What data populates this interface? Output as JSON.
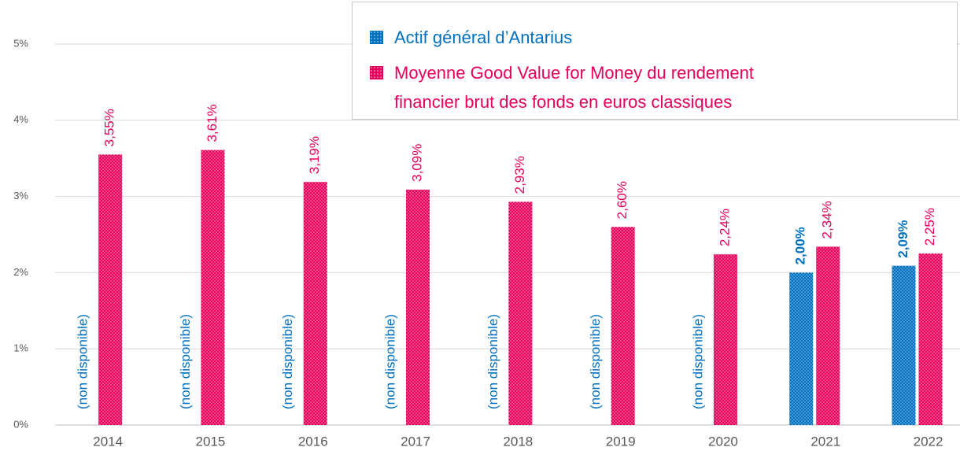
{
  "chart_data": {
    "type": "bar",
    "categories": [
      "2014",
      "2015",
      "2016",
      "2017",
      "2018",
      "2019",
      "2020",
      "2021",
      "2022"
    ],
    "series": [
      {
        "name": "Actif général d’Antarius",
        "color": "#0070c0",
        "values": [
          null,
          null,
          null,
          null,
          null,
          null,
          null,
          2.0,
          2.09
        ],
        "value_labels": [
          "(non disponible)",
          "(non disponible)",
          "(non disponible)",
          "(non disponible)",
          "(non disponible)",
          "(non disponible)",
          "(non disponible)",
          "2,00%",
          "2,09%"
        ]
      },
      {
        "name": "Moyenne Good Value for Money du rendement financier brut des fonds en euros classiques",
        "color": "#e6005c",
        "values": [
          3.55,
          3.61,
          3.19,
          3.09,
          2.93,
          2.6,
          2.24,
          2.34,
          2.25
        ],
        "value_labels": [
          "3,55%",
          "3,61%",
          "3,19%",
          "3,09%",
          "2,93%",
          "2,60%",
          "2,24%",
          "2,34%",
          "2,25%"
        ]
      }
    ],
    "ylim": [
      0,
      5
    ],
    "yticks": [
      {
        "value": 0,
        "label": "0%"
      },
      {
        "value": 1,
        "label": "1%"
      },
      {
        "value": 2,
        "label": "2%"
      },
      {
        "value": 3,
        "label": "3%"
      },
      {
        "value": 4,
        "label": "4%"
      },
      {
        "value": 5,
        "label": "5%"
      }
    ],
    "grid": true,
    "legend": "top-right"
  }
}
